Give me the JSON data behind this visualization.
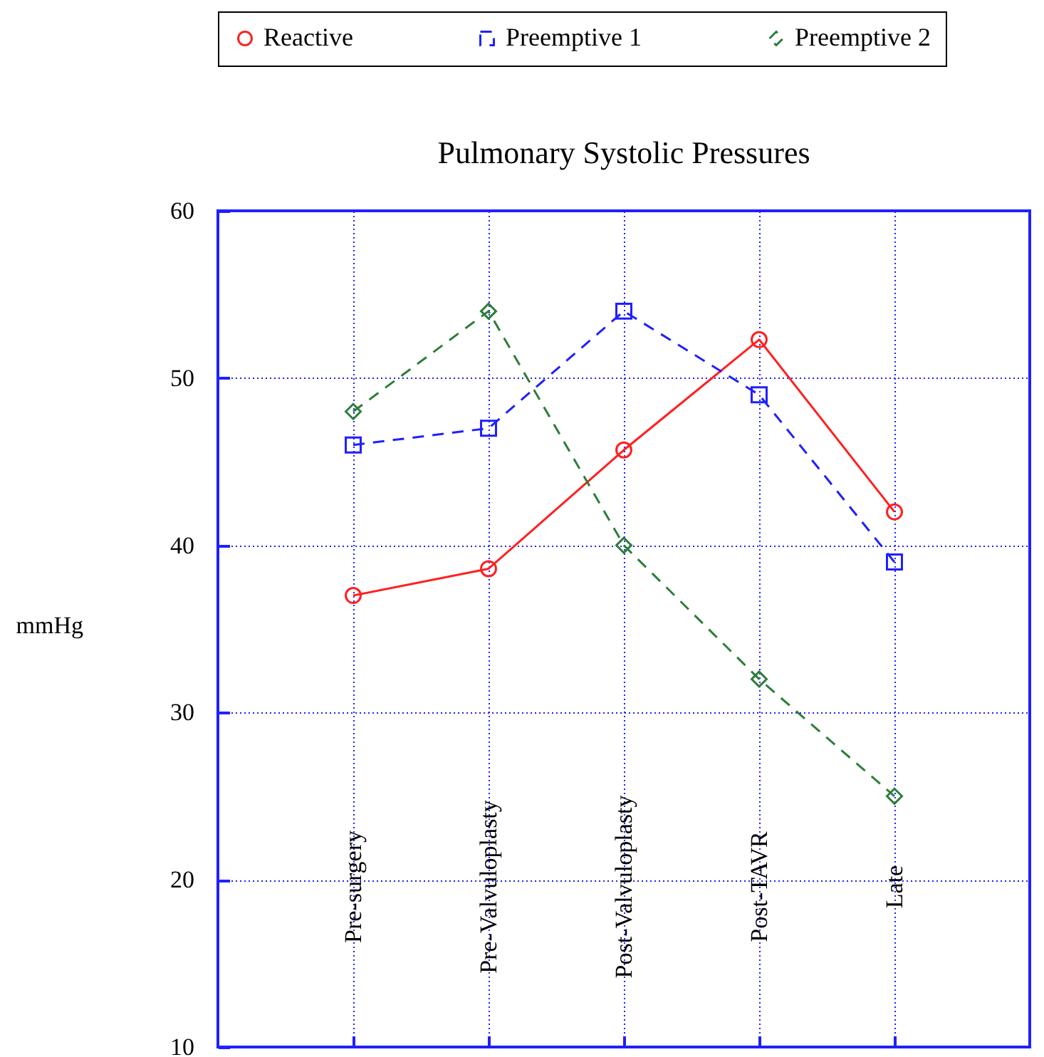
{
  "chart_data": {
    "type": "line",
    "title": "Pulmonary Systolic Pressures",
    "ylabel": "mmHg",
    "categories": [
      "Pre-surgery",
      "Pre-Valvuloplasty",
      "Post-Valvuloplasty",
      "Post-TAVR",
      "Late"
    ],
    "series": [
      {
        "name": "Reactive",
        "color": "#ff2020",
        "marker": "circle",
        "line_style": "solid",
        "values": [
          37,
          38.6,
          45.7,
          52.3,
          42
        ]
      },
      {
        "name": "Preemptive 1",
        "color": "#2020ff",
        "marker": "square",
        "line_style": "dashed",
        "values": [
          46,
          47,
          54,
          49,
          39
        ]
      },
      {
        "name": "Preemptive 2",
        "color": "#2e7d3a",
        "marker": "diamond",
        "line_style": "dashed",
        "values": [
          48,
          54,
          40,
          32,
          25
        ]
      }
    ],
    "ylim": [
      10,
      60
    ],
    "yticks": [
      10,
      20,
      30,
      40,
      50,
      60
    ],
    "grid": true,
    "legend": "top"
  }
}
